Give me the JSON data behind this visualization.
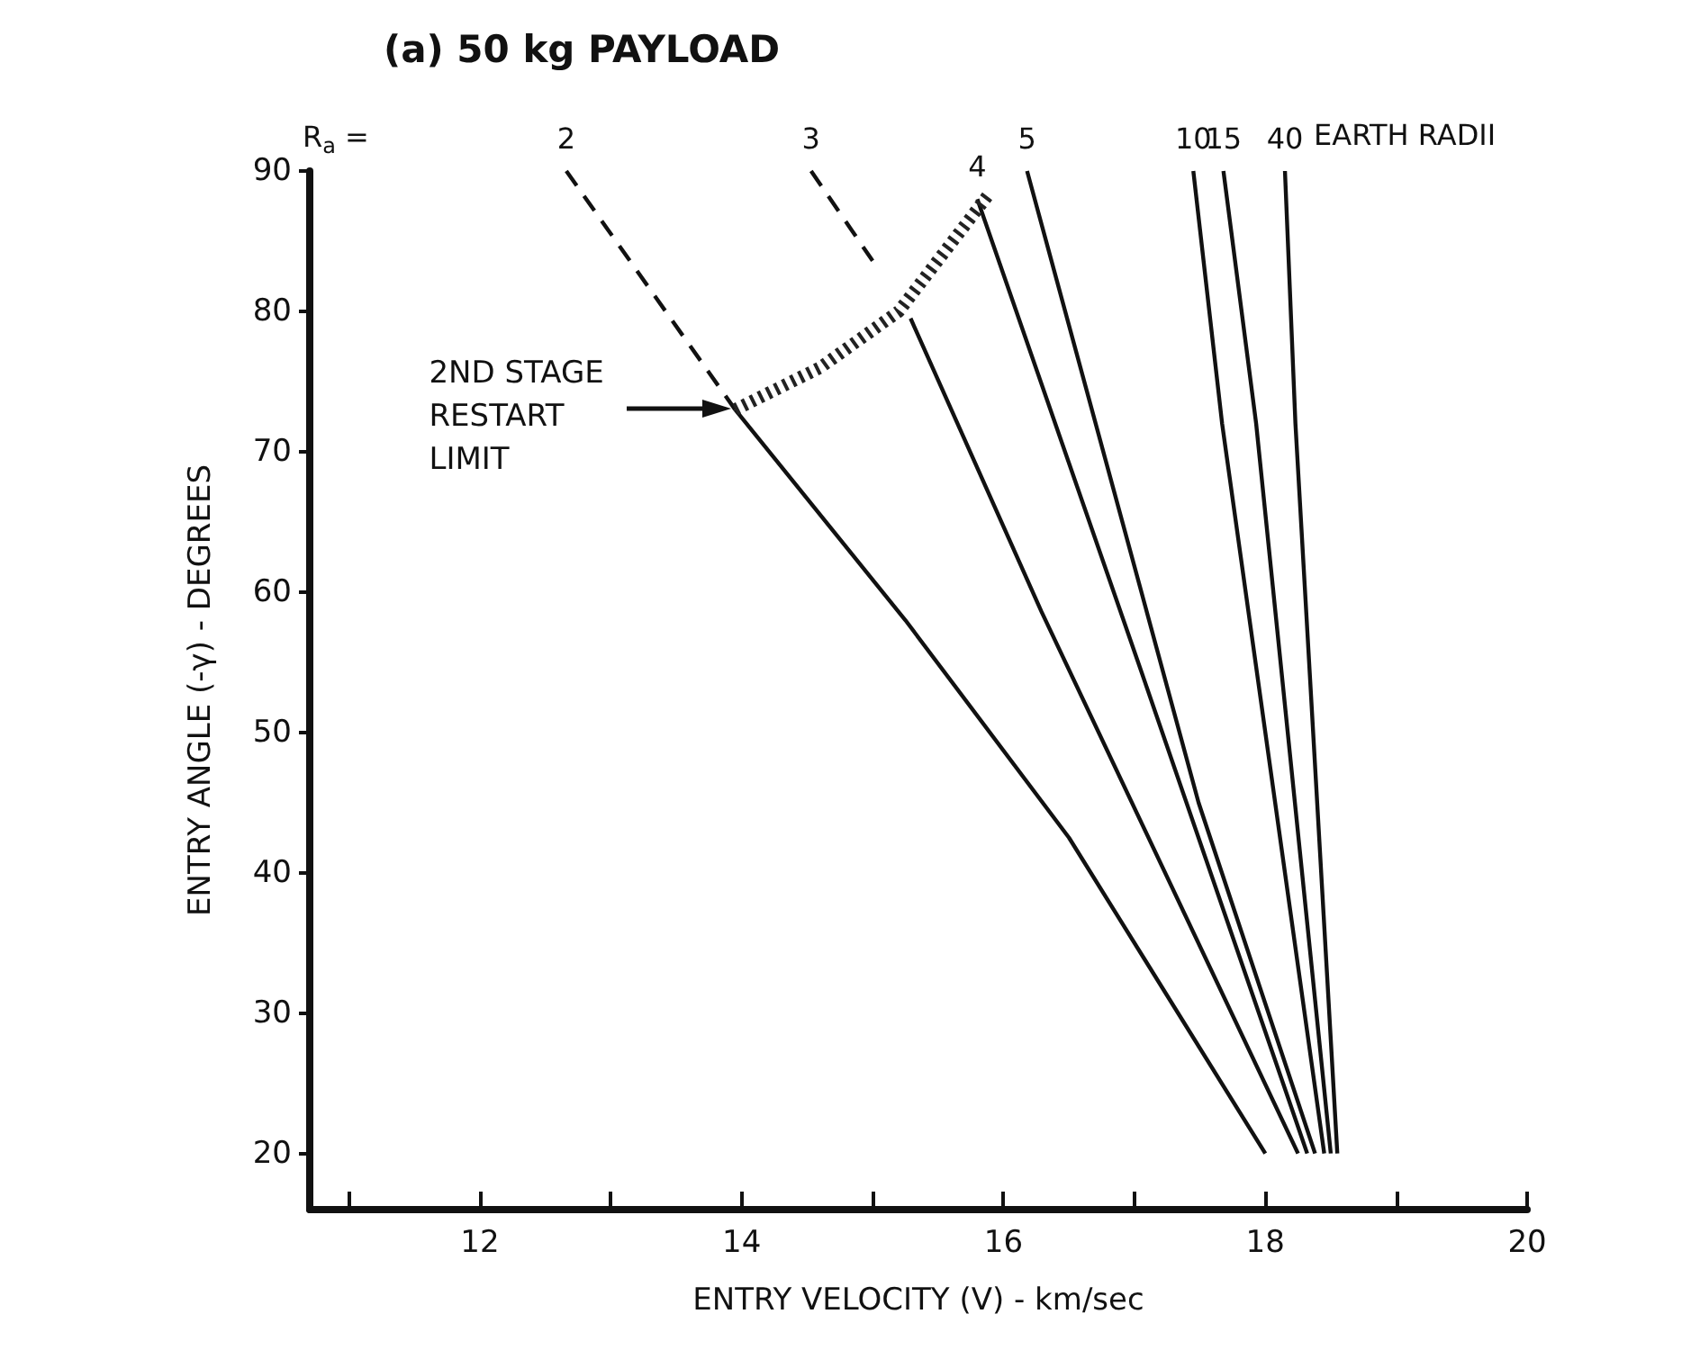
{
  "chart_data": {
    "type": "line",
    "title": "(a) 50 kg PAYLOAD",
    "xlabel": "ENTRY VELOCITY (V) - km/sec",
    "ylabel": "ENTRY ANGLE (-γ) - DEGREES",
    "xlim": [
      10.7,
      20
    ],
    "xticks": [
      {
        "value": 11,
        "label": null
      },
      12,
      {
        "value": 13,
        "label": null
      },
      14,
      {
        "value": 15,
        "label": null
      },
      16,
      {
        "value": 17,
        "label": null
      },
      18,
      {
        "value": 19,
        "label": null
      },
      20
    ],
    "ylim": [
      16,
      90
    ],
    "yticks": [
      20,
      30,
      40,
      50,
      60,
      70,
      80,
      90
    ],
    "grid": false,
    "legend": false,
    "marker": "none",
    "line_style": "solid",
    "series": [
      {
        "name": "2",
        "color": "#111111",
        "line_style": "dashed",
        "x": [
          12.66,
          13.95
        ],
        "values": [
          90,
          73
        ]
      },
      {
        "color": "#111111",
        "x": [
          13.95,
          15.25,
          16.5,
          18.0
        ],
        "values": [
          73,
          58,
          42.5,
          20
        ]
      },
      {
        "name": "3",
        "color": "#111111",
        "line_style": "dashed",
        "x": [
          14.53,
          15.0
        ],
        "values": [
          90,
          83.6
        ]
      },
      {
        "color": "#111111",
        "x": [
          15.29,
          16.29,
          18.25
        ],
        "values": [
          79.5,
          58.6,
          20
        ]
      },
      {
        "name": "4",
        "color": "#111111",
        "x": [
          15.8,
          17.08,
          18.32
        ],
        "values": [
          88,
          53.6,
          20
        ]
      },
      {
        "name": "5",
        "color": "#111111",
        "x": [
          16.18,
          17.49,
          18.38
        ],
        "values": [
          90,
          45,
          20
        ]
      },
      {
        "name": "10",
        "color": "#111111",
        "x": [
          17.45,
          17.67,
          18.45
        ],
        "values": [
          90,
          72,
          20
        ]
      },
      {
        "name": "15",
        "color": "#111111",
        "x": [
          17.68,
          17.93,
          18.5
        ],
        "values": [
          90,
          72,
          20
        ]
      },
      {
        "name": "40",
        "color": "#111111",
        "x": [
          18.15,
          18.23,
          18.55
        ],
        "values": [
          90,
          72,
          20
        ]
      },
      {
        "color": "#222222",
        "line_style": "dotted",
        "x": [
          13.95,
          14.6,
          15.2,
          15.9
        ],
        "values": [
          73,
          76,
          80,
          88.5
        ]
      }
    ],
    "annotations": [
      "R$_{a}$ =",
      "EARTH RADII",
      "2ND STAGE\nRESTART\nLIMIT"
    ]
  }
}
